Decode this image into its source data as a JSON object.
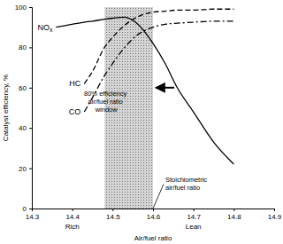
{
  "chart_data": {
    "type": "line",
    "x_label": "Air/fuel ratio",
    "y_label": "Catalyst efficiency, %",
    "x_side_labels": [
      "Rich",
      "Lean"
    ],
    "x": [
      14.36,
      14.4,
      14.43,
      14.45,
      14.48,
      14.5,
      14.53,
      14.56,
      14.6,
      14.63,
      14.66,
      14.7,
      14.75,
      14.8
    ],
    "series": [
      {
        "name": "NOx",
        "color": "#000000",
        "line_style": "solid",
        "values": [
          90,
          91.5,
          92.5,
          93,
          94,
          94.5,
          95,
          92,
          82,
          72,
          60,
          48,
          33,
          22
        ]
      },
      {
        "name": "HC",
        "color": "#000000",
        "line_style": "dashed",
        "values": [
          null,
          null,
          62,
          68,
          80,
          85,
          91,
          95,
          97.5,
          98,
          98.5,
          98.5,
          99,
          99
        ]
      },
      {
        "name": "CO",
        "color": "#000000",
        "line_style": "dashdot",
        "values": [
          null,
          null,
          48,
          55,
          66,
          72,
          80,
          86,
          90,
          91.5,
          92,
          92.5,
          93,
          93
        ]
      }
    ],
    "annotations": [
      {
        "text": "80% efficiency air/fuel ratio window",
        "x": [
          14.48,
          14.6
        ]
      },
      {
        "text": "Stoichiometric air/fuel ratio",
        "x": 14.6
      }
    ],
    "xlim": [
      14.3,
      14.9
    ],
    "xticks": [
      14.3,
      14.4,
      14.5,
      14.6,
      14.7,
      14.8,
      14.9
    ],
    "ylim": [
      0,
      100
    ],
    "yticks": [
      0,
      20,
      40,
      60,
      80,
      100
    ],
    "grid": false
  }
}
